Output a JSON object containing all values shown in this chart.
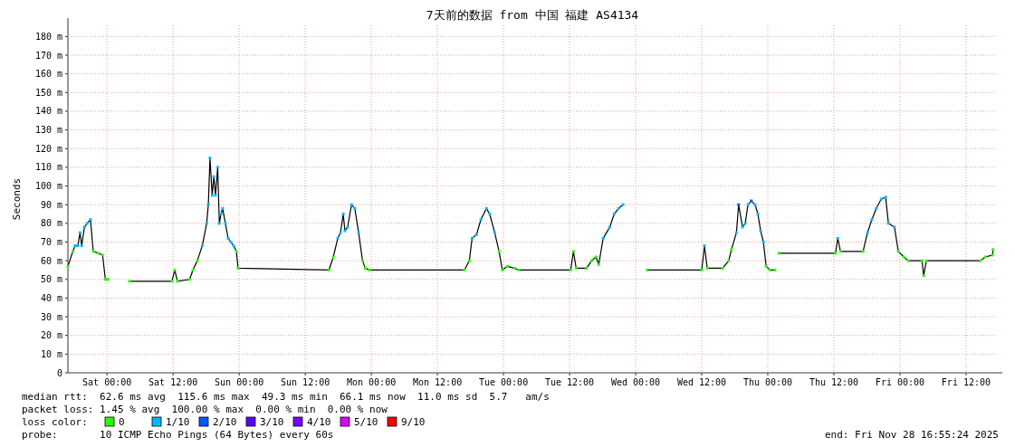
{
  "chart_data": {
    "type": "line",
    "title": "7天前的数据 from 中国 福建 AS4134",
    "ylabel": "Seconds",
    "xlim": [
      "2025-11-21T16:54",
      "2025-11-28T17:36"
    ],
    "xticks": [
      {
        "value": "2025-11-22T00:00",
        "label": "Sat 00:00"
      },
      {
        "value": "2025-11-22T12:00",
        "label": "Sat 12:00"
      },
      {
        "value": "2025-11-23T00:00",
        "label": "Sun 00:00"
      },
      {
        "value": "2025-11-23T12:00",
        "label": "Sun 12:00"
      },
      {
        "value": "2025-11-24T00:00",
        "label": "Mon 00:00"
      },
      {
        "value": "2025-11-24T12:00",
        "label": "Mon 12:00"
      },
      {
        "value": "2025-11-25T00:00",
        "label": "Tue 00:00"
      },
      {
        "value": "2025-11-25T12:00",
        "label": "Tue 12:00"
      },
      {
        "value": "2025-11-26T00:00",
        "label": "Wed 00:00"
      },
      {
        "value": "2025-11-26T12:00",
        "label": "Wed 12:00"
      },
      {
        "value": "2025-11-27T00:00",
        "label": "Thu 00:00"
      },
      {
        "value": "2025-11-27T12:00",
        "label": "Thu 12:00"
      },
      {
        "value": "2025-11-28T00:00",
        "label": "Fri 00:00"
      },
      {
        "value": "2025-11-28T12:00",
        "label": "Fri 12:00"
      }
    ],
    "ylim": [
      0,
      186
    ],
    "yticks": [
      {
        "value": 0,
        "label": "0"
      },
      {
        "value": 10,
        "label": "10 m"
      },
      {
        "value": 20,
        "label": "20 m"
      },
      {
        "value": 30,
        "label": "30 m"
      },
      {
        "value": 40,
        "label": "40 m"
      },
      {
        "value": 50,
        "label": "50 m"
      },
      {
        "value": 60,
        "label": "60 m"
      },
      {
        "value": 70,
        "label": "70 m"
      },
      {
        "value": 80,
        "label": "80 m"
      },
      {
        "value": 90,
        "label": "90 m"
      },
      {
        "value": 100,
        "label": "100 m"
      },
      {
        "value": 110,
        "label": "110 m"
      },
      {
        "value": 120,
        "label": "120 m"
      },
      {
        "value": 130,
        "label": "130 m"
      },
      {
        "value": 140,
        "label": "140 m"
      },
      {
        "value": 150,
        "label": "150 m"
      },
      {
        "value": 160,
        "label": "160 m"
      },
      {
        "value": 170,
        "label": "170 m"
      },
      {
        "value": 180,
        "label": "180 m"
      }
    ],
    "grid": true,
    "legend": "bottom",
    "legend_title": "loss color:",
    "series": [
      {
        "color": "#000000",
        "marker": "none",
        "x": [
          "2025-11-21T16:54",
          "2025-11-21T17:48",
          "2025-11-21T18:12",
          "2025-11-21T18:42",
          "2025-11-21T19:06",
          "2025-11-21T19:24",
          "2025-11-21T19:54",
          "2025-11-21T20:24",
          "2025-11-21T21:00",
          "2025-11-21T21:30",
          "2025-11-21T22:24",
          "2025-11-21T23:12",
          "2025-11-21T23:42",
          "2025-11-22T00:12",
          "2025-11-22T01:00",
          "2025-11-22T04:06",
          "2025-11-22T11:48",
          "2025-11-22T12:18",
          "2025-11-22T12:48",
          "2025-11-22T15:00",
          "2025-11-22T15:36",
          "2025-11-22T16:24",
          "2025-11-22T17:18",
          "2025-11-22T18:06",
          "2025-11-22T18:24",
          "2025-11-22T18:42",
          "2025-11-22T19:06",
          "2025-11-22T19:24",
          "2025-11-22T19:42",
          "2025-11-22T20:06",
          "2025-11-22T20:24",
          "2025-11-22T20:42",
          "2025-11-22T21:00",
          "2025-11-22T21:30",
          "2025-11-22T22:00",
          "2025-11-22T22:30",
          "2025-11-22T23:00",
          "2025-11-22T23:30",
          "2025-11-22T23:48",
          "2025-11-23T16:18",
          "2025-11-23T17:06",
          "2025-11-23T17:54",
          "2025-11-23T18:24",
          "2025-11-23T18:54",
          "2025-11-23T19:12",
          "2025-11-23T19:42",
          "2025-11-23T20:24",
          "2025-11-23T21:00",
          "2025-11-23T21:42",
          "2025-11-23T22:24",
          "2025-11-23T22:54",
          "2025-11-23T23:42",
          "2025-11-24T16:54",
          "2025-11-24T17:48",
          "2025-11-24T18:18",
          "2025-11-24T19:06",
          "2025-11-24T19:54",
          "2025-11-24T20:54",
          "2025-11-24T21:30",
          "2025-11-24T22:24",
          "2025-11-24T23:12",
          "2025-11-24T23:48",
          "2025-11-25T00:42",
          "2025-11-25T02:00",
          "2025-11-25T02:48",
          "2025-11-25T12:12",
          "2025-11-25T12:42",
          "2025-11-25T13:12",
          "2025-11-25T15:06",
          "2025-11-25T16:00",
          "2025-11-25T16:48",
          "2025-11-25T17:18",
          "2025-11-25T18:06",
          "2025-11-25T19:18",
          "2025-11-25T20:06",
          "2025-11-25T20:54",
          "2025-11-25T21:42",
          "2025-11-25T22:00",
          "2025-11-26T02:06",
          "2025-11-26T12:00",
          "2025-11-26T12:30",
          "2025-11-26T13:00",
          "2025-11-26T15:48",
          "2025-11-26T16:54",
          "2025-11-26T17:24",
          "2025-11-26T18:18",
          "2025-11-26T18:42",
          "2025-11-26T19:24",
          "2025-11-26T19:54",
          "2025-11-26T20:24",
          "2025-11-26T21:00",
          "2025-11-26T21:42",
          "2025-11-26T22:12",
          "2025-11-26T22:42",
          "2025-11-26T23:12",
          "2025-11-26T23:42",
          "2025-11-27T00:24",
          "2025-11-27T01:18",
          "2025-11-27T01:36",
          "2025-11-27T02:00",
          "2025-11-27T12:18",
          "2025-11-27T12:42",
          "2025-11-27T13:12",
          "2025-11-27T17:18",
          "2025-11-27T18:06",
          "2025-11-27T18:54",
          "2025-11-27T19:42",
          "2025-11-27T20:36",
          "2025-11-27T21:24",
          "2025-11-27T21:54",
          "2025-11-27T23:00",
          "2025-11-27T23:42",
          "2025-11-28T00:42",
          "2025-11-28T01:30",
          "2025-11-28T04:00",
          "2025-11-28T04:18",
          "2025-11-28T04:48",
          "2025-11-28T14:36",
          "2025-11-28T15:30",
          "2025-11-28T16:48",
          "2025-11-28T16:54"
        ],
        "values": [
          57,
          65,
          68,
          68,
          75,
          68,
          78,
          80,
          82,
          65,
          64,
          63,
          50,
          50,
          null,
          49,
          49,
          55,
          49,
          50,
          55,
          60,
          68,
          80,
          90,
          115,
          95,
          105,
          95,
          110,
          80,
          85,
          88,
          80,
          72,
          70,
          68,
          65,
          56,
          55,
          62,
          72,
          75,
          85,
          76,
          78,
          90,
          88,
          75,
          60,
          56,
          55,
          55,
          60,
          72,
          74,
          82,
          88,
          85,
          75,
          65,
          55,
          57,
          56,
          55,
          55,
          65,
          56,
          56,
          60,
          62,
          58,
          72,
          78,
          85,
          88,
          90,
          null,
          55,
          55,
          68,
          56,
          56,
          60,
          66,
          75,
          90,
          78,
          80,
          90,
          92,
          90,
          85,
          76,
          70,
          57,
          55,
          55,
          null,
          64,
          64,
          72,
          65,
          65,
          75,
          82,
          88,
          93,
          94,
          80,
          78,
          65,
          62,
          60,
          60,
          52,
          60,
          60,
          62,
          63,
          66
        ]
      },
      {
        "type": "scatter",
        "name": "0",
        "color": "#26ff00",
        "marker": "square",
        "x": [
          "2025-11-21T16:54",
          "2025-11-21T17:48",
          "2025-11-21T21:30",
          "2025-11-21T22:24",
          "2025-11-21T23:12",
          "2025-11-21T23:42",
          "2025-11-22T00:12",
          "2025-11-22T04:06",
          "2025-11-22T11:48",
          "2025-11-22T12:18",
          "2025-11-22T12:48",
          "2025-11-22T15:00",
          "2025-11-22T15:36",
          "2025-11-22T16:24",
          "2025-11-22T23:30",
          "2025-11-22T23:48",
          "2025-11-23T16:18",
          "2025-11-23T17:06",
          "2025-11-23T22:24",
          "2025-11-23T22:54",
          "2025-11-23T23:42",
          "2025-11-24T16:54",
          "2025-11-24T17:48",
          "2025-11-24T23:12",
          "2025-11-24T23:48",
          "2025-11-25T00:42",
          "2025-11-25T02:00",
          "2025-11-25T02:48",
          "2025-11-25T12:12",
          "2025-11-25T12:42",
          "2025-11-25T13:12",
          "2025-11-25T15:06",
          "2025-11-25T16:00",
          "2025-11-25T16:48",
          "2025-11-25T17:18",
          "2025-11-26T02:06",
          "2025-11-26T12:00",
          "2025-11-26T13:00",
          "2025-11-26T15:48",
          "2025-11-26T16:54",
          "2025-11-26T17:24",
          "2025-11-26T23:42",
          "2025-11-27T00:24",
          "2025-11-27T01:18",
          "2025-11-27T02:00",
          "2025-11-27T12:18",
          "2025-11-27T13:12",
          "2025-11-27T17:18",
          "2025-11-27T23:42",
          "2025-11-28T00:42",
          "2025-11-28T01:30",
          "2025-11-28T04:00",
          "2025-11-28T04:18",
          "2025-11-28T04:48",
          "2025-11-28T14:36",
          "2025-11-28T15:30",
          "2025-11-28T16:48",
          "2025-11-28T16:54"
        ],
        "values": [
          57,
          65,
          65,
          64,
          63,
          50,
          50,
          49,
          49,
          55,
          49,
          50,
          55,
          60,
          65,
          56,
          55,
          62,
          60,
          56,
          55,
          55,
          60,
          65,
          55,
          57,
          56,
          55,
          55,
          65,
          56,
          56,
          60,
          62,
          58,
          55,
          55,
          56,
          56,
          60,
          66,
          57,
          55,
          55,
          64,
          64,
          65,
          65,
          65,
          62,
          60,
          60,
          52,
          60,
          60,
          62,
          63,
          66
        ]
      },
      {
        "type": "scatter",
        "name": "1/10",
        "color": "#00b8ff",
        "marker": "square",
        "x": [
          "2025-11-21T18:12",
          "2025-11-21T18:42",
          "2025-11-21T19:06",
          "2025-11-21T19:24",
          "2025-11-21T19:54",
          "2025-11-21T20:24",
          "2025-11-21T21:00",
          "2025-11-22T17:18",
          "2025-11-22T18:06",
          "2025-11-22T18:24",
          "2025-11-22T18:42",
          "2025-11-22T19:06",
          "2025-11-22T19:24",
          "2025-11-22T19:42",
          "2025-11-22T20:06",
          "2025-11-22T20:24",
          "2025-11-22T20:42",
          "2025-11-22T21:00",
          "2025-11-22T21:30",
          "2025-11-22T22:00",
          "2025-11-22T22:30",
          "2025-11-22T23:00",
          "2025-11-23T17:54",
          "2025-11-23T18:24",
          "2025-11-23T18:54",
          "2025-11-23T19:12",
          "2025-11-23T19:42",
          "2025-11-23T20:24",
          "2025-11-23T21:00",
          "2025-11-23T21:42",
          "2025-11-24T18:18",
          "2025-11-24T19:06",
          "2025-11-24T19:54",
          "2025-11-24T20:54",
          "2025-11-24T21:30",
          "2025-11-24T22:24",
          "2025-11-25T18:06",
          "2025-11-25T19:18",
          "2025-11-25T20:06",
          "2025-11-25T20:54",
          "2025-11-25T21:42",
          "2025-11-26T12:30",
          "2025-11-26T18:18",
          "2025-11-26T19:24",
          "2025-11-26T19:54",
          "2025-11-26T20:24",
          "2025-11-26T21:42",
          "2025-11-26T22:12",
          "2025-11-26T22:42",
          "2025-11-26T23:12",
          "2025-11-27T12:42",
          "2025-11-27T18:06",
          "2025-11-27T18:54",
          "2025-11-27T19:42",
          "2025-11-27T20:36",
          "2025-11-27T21:24",
          "2025-11-27T21:54",
          "2025-11-27T23:00"
        ],
        "values": [
          68,
          68,
          75,
          68,
          78,
          80,
          82,
          68,
          80,
          90,
          115,
          95,
          105,
          95,
          110,
          80,
          85,
          88,
          80,
          72,
          70,
          68,
          72,
          75,
          85,
          76,
          78,
          90,
          88,
          75,
          72,
          74,
          82,
          88,
          85,
          75,
          72,
          78,
          85,
          88,
          90,
          68,
          75,
          78,
          80,
          90,
          90,
          85,
          76,
          70,
          72,
          75,
          82,
          88,
          93,
          94,
          80,
          78
        ]
      },
      {
        "type": "scatter",
        "name": "2/10",
        "color": "#0059ff",
        "marker": "square",
        "x": [
          "2025-11-26T18:42",
          "2025-11-26T21:00"
        ],
        "values": [
          90,
          92
        ]
      },
      {
        "type": "scatter",
        "name": "3/10",
        "color": "#5e00ff",
        "marker": "square"
      },
      {
        "type": "scatter",
        "name": "4/10",
        "color": "#7e00ff",
        "marker": "square"
      },
      {
        "type": "scatter",
        "name": "5/10",
        "color": "#dd00ff",
        "marker": "square"
      },
      {
        "type": "scatter",
        "name": "9/10",
        "color": "#ff0000",
        "marker": "square"
      }
    ],
    "annotations": [
      "median rtt:  62.6 ms avg  115.6 ms max  49.3 ms min  66.1 ms now  11.0 ms sd  5.7   am/s",
      "packet loss: 1.45 % avg  100.00 % max  0.00 % min  0.00 % now",
      "probe:       10 ICMP Echo Pings (64 Bytes) every 60s",
      "end: Fri Nov 28 16:55:24 2025"
    ]
  }
}
